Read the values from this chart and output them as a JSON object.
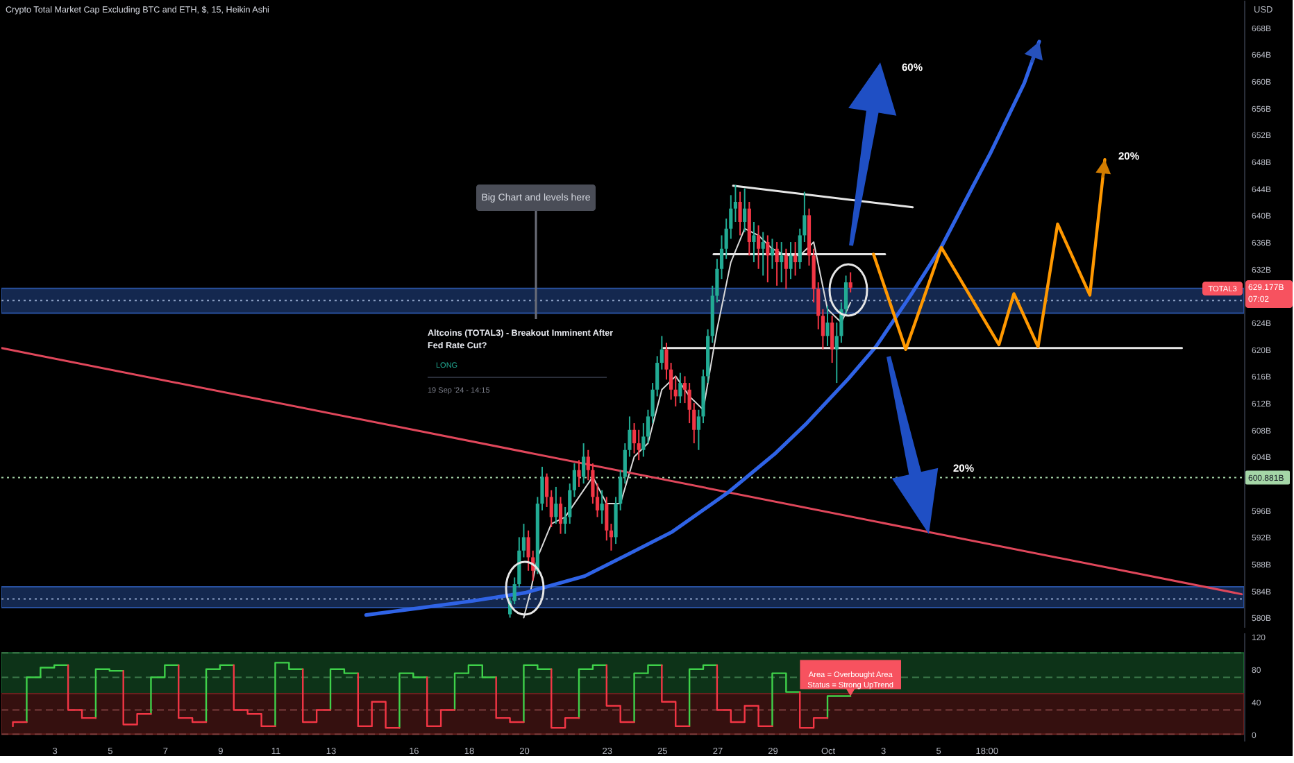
{
  "chart_data": [
    {
      "type": "candlestick",
      "title": "Crypto Total Market Cap Excluding BTC and ETH, $, 15, Heikin Ashi",
      "ylabel": "USD",
      "x": [
        "2024-09-19T12:00",
        "2024-09-19T16:00",
        "2024-09-19T20:00",
        "2024-09-20T00:00",
        "2024-09-20T04:00",
        "2024-09-20T08:00",
        "2024-09-20T12:00",
        "2024-09-20T16:00",
        "2024-09-20T20:00",
        "2024-09-21T00:00",
        "2024-09-21T04:00",
        "2024-09-21T08:00",
        "2024-09-21T12:00",
        "2024-09-21T16:00",
        "2024-09-21T20:00",
        "2024-09-22T00:00",
        "2024-09-22T04:00",
        "2024-09-22T08:00",
        "2024-09-22T12:00",
        "2024-09-22T16:00",
        "2024-09-22T20:00",
        "2024-09-23T00:00",
        "2024-09-23T04:00",
        "2024-09-23T08:00",
        "2024-09-23T12:00",
        "2024-09-23T16:00",
        "2024-09-23T20:00",
        "2024-09-24T00:00",
        "2024-09-24T04:00",
        "2024-09-24T08:00",
        "2024-09-24T12:00",
        "2024-09-24T16:00",
        "2024-09-24T20:00",
        "2024-09-25T00:00",
        "2024-09-25T04:00",
        "2024-09-25T08:00",
        "2024-09-25T12:00",
        "2024-09-25T16:00",
        "2024-09-25T20:00",
        "2024-09-26T00:00",
        "2024-09-26T04:00",
        "2024-09-26T08:00",
        "2024-09-26T12:00",
        "2024-09-26T16:00",
        "2024-09-26T20:00",
        "2024-09-27T00:00",
        "2024-09-27T04:00",
        "2024-09-27T08:00",
        "2024-09-27T12:00",
        "2024-09-27T16:00",
        "2024-09-27T20:00",
        "2024-09-28T00:00",
        "2024-09-28T04:00",
        "2024-09-28T08:00",
        "2024-09-28T12:00",
        "2024-09-28T16:00",
        "2024-09-28T20:00",
        "2024-09-29T00:00",
        "2024-09-29T04:00",
        "2024-09-29T08:00",
        "2024-09-29T12:00",
        "2024-09-29T16:00",
        "2024-09-29T20:00",
        "2024-09-30T00:00",
        "2024-09-30T04:00",
        "2024-09-30T08:00",
        "2024-09-30T12:00",
        "2024-09-30T16:00",
        "2024-09-30T20:00",
        "2024-10-01T00:00",
        "2024-10-01T04:00",
        "2024-10-01T08:00",
        "2024-10-01T12:00",
        "2024-10-01T16:00",
        "2024-10-01T20:00"
      ],
      "ohlc": [
        [
          580.5,
          583,
          580,
          582.5
        ],
        [
          582.5,
          586,
          582,
          585
        ],
        [
          585,
          592,
          584.5,
          590
        ],
        [
          590,
          594,
          589,
          592
        ],
        [
          592,
          593,
          587,
          589
        ],
        [
          589,
          590,
          585.5,
          587
        ],
        [
          587,
          598,
          586.5,
          597
        ],
        [
          597,
          602.5,
          596,
          601
        ],
        [
          601,
          601.5,
          596.5,
          598
        ],
        [
          598,
          599,
          593.5,
          595
        ],
        [
          595,
          599.5,
          594,
          597
        ],
        [
          597,
          598,
          592.5,
          594
        ],
        [
          594,
          596.5,
          592.5,
          595
        ],
        [
          595,
          600,
          594,
          599
        ],
        [
          599,
          603,
          598,
          602
        ],
        [
          602,
          603.5,
          599.5,
          601
        ],
        [
          601,
          606,
          600,
          604
        ],
        [
          604,
          605,
          600.5,
          602
        ],
        [
          602,
          603,
          597,
          598
        ],
        [
          598,
          600,
          595,
          596
        ],
        [
          596,
          599,
          594,
          597
        ],
        [
          597,
          598,
          591.5,
          593
        ],
        [
          593,
          594,
          590,
          592
        ],
        [
          592,
          598,
          591,
          597
        ],
        [
          597,
          602,
          596,
          601
        ],
        [
          601,
          606,
          600,
          605
        ],
        [
          605,
          610,
          604,
          608
        ],
        [
          608,
          609,
          604.5,
          606
        ],
        [
          606,
          608,
          603.5,
          605
        ],
        [
          605,
          609,
          604,
          607
        ],
        [
          607,
          611,
          606,
          610
        ],
        [
          610,
          615,
          609,
          614
        ],
        [
          614,
          619,
          613,
          618
        ],
        [
          618,
          622,
          617,
          620
        ],
        [
          620,
          621,
          615.5,
          617
        ],
        [
          617,
          618,
          612.5,
          614
        ],
        [
          614,
          616,
          611.5,
          613
        ],
        [
          613,
          616.5,
          612,
          615
        ],
        [
          615,
          616,
          612,
          614
        ],
        [
          614,
          615,
          609,
          611
        ],
        [
          611,
          612,
          606,
          608
        ],
        [
          608,
          611,
          605,
          610
        ],
        [
          610,
          617,
          609,
          616
        ],
        [
          616,
          623,
          615,
          622
        ],
        [
          622,
          629.5,
          621,
          628
        ],
        [
          628,
          633.5,
          627,
          632
        ],
        [
          632,
          637,
          630.5,
          635
        ],
        [
          635,
          639.5,
          633.5,
          638
        ],
        [
          638,
          643,
          636.5,
          641
        ],
        [
          641,
          644.5,
          639,
          642
        ],
        [
          642,
          643.5,
          637,
          639
        ],
        [
          639,
          644,
          637.5,
          641
        ],
        [
          641,
          642,
          634,
          636
        ],
        [
          636,
          639,
          633,
          637
        ],
        [
          637,
          638.5,
          632,
          635
        ],
        [
          635,
          637.5,
          631,
          636
        ],
        [
          636,
          637,
          630,
          634
        ],
        [
          634,
          636.5,
          632,
          635
        ],
        [
          635,
          636,
          629.5,
          633
        ],
        [
          633,
          636,
          630,
          634
        ],
        [
          634,
          635,
          629,
          632
        ],
        [
          632,
          636,
          630.5,
          634
        ],
        [
          634,
          636,
          631,
          633
        ],
        [
          633,
          638,
          632,
          637
        ],
        [
          637,
          643.5,
          636,
          640
        ],
        [
          640,
          641,
          632.5,
          634
        ],
        [
          634,
          635,
          627,
          629
        ],
        [
          629,
          630,
          623,
          625
        ],
        [
          625,
          626,
          620,
          622
        ],
        [
          622,
          626.5,
          620.5,
          624
        ],
        [
          624,
          625,
          618,
          620
        ],
        [
          620,
          624,
          615,
          622
        ],
        [
          622,
          627,
          621,
          626
        ],
        [
          626,
          631,
          625,
          630
        ],
        [
          630,
          631.5,
          628.5,
          629.2
        ]
      ],
      "colors": [
        "#22ab94",
        "#22ab94",
        "#22ab94",
        "#22ab94",
        "#f23645",
        "#f23645",
        "#22ab94",
        "#22ab94",
        "#f23645",
        "#f23645",
        "#22ab94",
        "#f23645",
        "#22ab94",
        "#22ab94",
        "#22ab94",
        "#f23645",
        "#22ab94",
        "#f23645",
        "#f23645",
        "#f23645",
        "#22ab94",
        "#f23645",
        "#f23645",
        "#22ab94",
        "#22ab94",
        "#22ab94",
        "#22ab94",
        "#f23645",
        "#f23645",
        "#22ab94",
        "#22ab94",
        "#22ab94",
        "#22ab94",
        "#22ab94",
        "#f23645",
        "#f23645",
        "#f23645",
        "#22ab94",
        "#f23645",
        "#f23645",
        "#f23645",
        "#22ab94",
        "#22ab94",
        "#22ab94",
        "#22ab94",
        "#22ab94",
        "#22ab94",
        "#22ab94",
        "#22ab94",
        "#22ab94",
        "#f23645",
        "#22ab94",
        "#f23645",
        "#22ab94",
        "#f23645",
        "#22ab94",
        "#f23645",
        "#22ab94",
        "#f23645",
        "#22ab94",
        "#f23645",
        "#22ab94",
        "#f23645",
        "#22ab94",
        "#22ab94",
        "#f23645",
        "#f23645",
        "#f23645",
        "#f23645",
        "#22ab94",
        "#f23645",
        "#22ab94",
        "#22ab94",
        "#22ab94",
        "#f23645"
      ],
      "series": [
        {
          "type": "line",
          "color": "#d9d9d9",
          "x": [
            "2024-09-20T00:00",
            "2024-09-20T06:00",
            "2024-09-20T12:00",
            "2024-09-21T00:00",
            "2024-09-21T12:00",
            "2024-09-22T00:00",
            "2024-09-22T12:00",
            "2024-09-23T00:00",
            "2024-09-23T12:00",
            "2024-09-24T00:00",
            "2024-09-24T12:00",
            "2024-09-25T00:00",
            "2024-09-25T12:00",
            "2024-09-26T00:00",
            "2024-09-26T12:00",
            "2024-09-27T00:00",
            "2024-09-27T12:00",
            "2024-09-28T00:00",
            "2024-09-28T12:00",
            "2024-09-29T00:00",
            "2024-09-29T12:00",
            "2024-09-30T00:00",
            "2024-09-30T12:00",
            "2024-10-01T00:00",
            "2024-10-01T12:00",
            "2024-10-01T20:00"
          ],
          "values": [
            580,
            584,
            589,
            594,
            595,
            598,
            601,
            597,
            597,
            604,
            606,
            614,
            616,
            613,
            611,
            623,
            633,
            638,
            637,
            635,
            634,
            634,
            636,
            626,
            624,
            627
          ]
        },
        {
          "type": "line",
          "color": "#e0475b",
          "x": [
            "2024-09-01T02:00",
            "2024-10-16T00:00"
          ],
          "values": [
            620.2,
            583.5
          ]
        },
        {
          "type": "line",
          "color": "#2f63e6",
          "x": [
            "2024-09-14T07:00",
            "2024-09-16T04:00",
            "2024-09-18T04:00",
            "2024-09-20T01:00",
            "2024-09-22T05:00",
            "2024-09-23T17:00",
            "2024-09-25T09:00",
            "2024-09-27T09:00",
            "2024-09-29T02:00",
            "2024-09-30T06:00",
            "2024-10-01T18:00",
            "2024-10-02T18:00",
            "2024-10-04T00:00",
            "2024-10-05T03:00",
            "2024-10-06T06:00",
            "2024-10-06T22:00",
            "2024-10-08T03:00",
            "2024-10-08T16:00"
          ],
          "values": [
            580.4,
            581.4,
            582.5,
            583.7,
            586.2,
            589.3,
            592.8,
            598.6,
            604.4,
            609.0,
            615.6,
            620.4,
            628.0,
            635.3,
            644.2,
            649.4,
            659.7,
            665.9
          ]
        },
        {
          "type": "line",
          "color": "#e6e6e6",
          "x": [
            "2024-09-27T14:00",
            "2024-10-04T02:00"
          ],
          "values": [
            644.4,
            641.2
          ]
        },
        {
          "type": "line",
          "color": "#e6e6e6",
          "x": [
            "2024-09-26T21:00",
            "2024-10-03T02:00"
          ],
          "values": [
            634.2,
            634.2
          ]
        },
        {
          "type": "line",
          "color": "#e6e6e6",
          "x": [
            "2024-09-25T01:30",
            "2024-10-13T20:00"
          ],
          "values": [
            620.2,
            620.2
          ]
        },
        {
          "type": "line",
          "color": "#ff9800",
          "x": [
            "2024-10-02T16:00",
            "2024-10-03T20:00",
            "2024-10-05T03:00",
            "2024-10-07T05:00",
            "2024-10-07T18:00",
            "2024-10-08T15:00",
            "2024-10-09T08:00",
            "2024-10-10T12:00",
            "2024-10-11T01:00"
          ],
          "values": [
            634.2,
            620.0,
            635.2,
            620.7,
            628.3,
            620.4,
            638.7,
            628.1,
            648.3
          ]
        }
      ],
      "xlim": [
        "2024-09-01T02:00",
        "2024-10-16T02:00"
      ],
      "ylim": [
        578.6,
        672.1
      ],
      "yticks": [
        {
          "value": 580,
          "label": "580B"
        },
        {
          "value": 584,
          "label": "584B"
        },
        {
          "value": 588,
          "label": "588B"
        },
        {
          "value": 592,
          "label": "592B"
        },
        {
          "value": 596,
          "label": "596B"
        },
        {
          "value": 604,
          "label": "604B"
        },
        {
          "value": 608,
          "label": "608B"
        },
        {
          "value": 612,
          "label": "612B"
        },
        {
          "value": 616,
          "label": "616B"
        },
        {
          "value": 620,
          "label": "620B"
        },
        {
          "value": 624,
          "label": "624B"
        },
        {
          "value": 632,
          "label": "632B"
        },
        {
          "value": 636,
          "label": "636B"
        },
        {
          "value": 640,
          "label": "640B"
        },
        {
          "value": 644,
          "label": "644B"
        },
        {
          "value": 648,
          "label": "648B"
        },
        {
          "value": 652,
          "label": "652B"
        },
        {
          "value": 656,
          "label": "656B"
        },
        {
          "value": 660,
          "label": "660B"
        },
        {
          "value": 664,
          "label": "664B"
        },
        {
          "value": 668,
          "label": "668B"
        }
      ],
      "tick_labels": "y",
      "bands": [
        {
          "axis": "y",
          "from": 625.4,
          "to": 629.1,
          "color": "#14284f"
        },
        {
          "axis": "y",
          "from": 581.5,
          "to": 584.6,
          "color": "#14284f"
        }
      ],
      "ref_lines": [
        {
          "axis": "y",
          "value": 627.3,
          "color": "#8ea2c8",
          "line_style": "dotted"
        },
        {
          "axis": "y",
          "value": 582.8,
          "color": "#8ea2c8",
          "line_style": "dotted"
        },
        {
          "axis": "y",
          "value": 600.881,
          "label": "600.881B",
          "color": "#a5d6a7",
          "line_style": "dotted"
        }
      ],
      "annotations": [
        "Big Chart and levels here",
        "Altcoins (TOTAL3) - Breakout Imminent After\nFed Rate Cut?",
        "LONG",
        "19 Sep '24 - 14:15",
        "60%",
        "20%",
        "20%",
        "TOTAL3",
        "629.177B\n07:02"
      ]
    },
    {
      "type": "step",
      "x": [
        "2024-09-01T12:00",
        "2024-09-02T00:00",
        "2024-09-02T12:00",
        "2024-09-03T00:00",
        "2024-09-03T12:00",
        "2024-09-04T00:00",
        "2024-09-04T12:00",
        "2024-09-05T00:00",
        "2024-09-05T12:00",
        "2024-09-06T00:00",
        "2024-09-06T12:00",
        "2024-09-07T00:00",
        "2024-09-07T12:00",
        "2024-09-08T00:00",
        "2024-09-08T12:00",
        "2024-09-09T00:00",
        "2024-09-09T12:00",
        "2024-09-10T00:00",
        "2024-09-10T12:00",
        "2024-09-11T00:00",
        "2024-09-11T12:00",
        "2024-09-12T00:00",
        "2024-09-12T12:00",
        "2024-09-13T00:00",
        "2024-09-13T12:00",
        "2024-09-14T00:00",
        "2024-09-14T12:00",
        "2024-09-15T00:00",
        "2024-09-15T12:00",
        "2024-09-16T00:00",
        "2024-09-16T12:00",
        "2024-09-17T00:00",
        "2024-09-17T12:00",
        "2024-09-18T00:00",
        "2024-09-18T12:00",
        "2024-09-19T00:00",
        "2024-09-19T12:00",
        "2024-09-20T00:00",
        "2024-09-20T12:00",
        "2024-09-21T00:00",
        "2024-09-21T12:00",
        "2024-09-22T00:00",
        "2024-09-22T12:00",
        "2024-09-23T00:00",
        "2024-09-23T12:00",
        "2024-09-24T00:00",
        "2024-09-24T12:00",
        "2024-09-25T00:00",
        "2024-09-25T12:00",
        "2024-09-26T00:00",
        "2024-09-26T12:00",
        "2024-09-27T00:00",
        "2024-09-27T12:00",
        "2024-09-28T00:00",
        "2024-09-28T12:00",
        "2024-09-29T00:00",
        "2024-09-29T12:00",
        "2024-09-30T00:00",
        "2024-09-30T12:00",
        "2024-10-01T00:00",
        "2024-10-01T20:00"
      ],
      "series": [
        {
          "color": "#3fd14a",
          "values": [
            null,
            15,
            70,
            82,
            85,
            null,
            20,
            80,
            78,
            null,
            25,
            70,
            85,
            null,
            15,
            80,
            85,
            null,
            null,
            10,
            88,
            80,
            null,
            30,
            80,
            75,
            null,
            null,
            8,
            75,
            70,
            null,
            30,
            75,
            85,
            70,
            null,
            15,
            85,
            80,
            null,
            20,
            80,
            85,
            null,
            15,
            75,
            85,
            null,
            10,
            80,
            85,
            null,
            null,
            null,
            10,
            75,
            52,
            null,
            20,
            47
          ]
        },
        {
          "color": "#f23645",
          "values": [
            10,
            15,
            null,
            null,
            85,
            30,
            20,
            null,
            78,
            12,
            25,
            null,
            85,
            20,
            15,
            null,
            85,
            30,
            25,
            10,
            null,
            80,
            15,
            30,
            null,
            75,
            10,
            40,
            8,
            null,
            70,
            10,
            30,
            null,
            null,
            70,
            20,
            15,
            null,
            80,
            8,
            20,
            null,
            85,
            35,
            15,
            null,
            85,
            40,
            10,
            null,
            85,
            30,
            15,
            35,
            10,
            null,
            52,
            8,
            20,
            null
          ]
        }
      ],
      "xlim": [
        "2024-09-01T02:00",
        "2024-10-16T02:00"
      ],
      "ylim": [
        -8,
        125
      ],
      "xticks": [
        {
          "value": "2024-09-03T00:00",
          "label": "3"
        },
        {
          "value": "2024-09-05T00:00",
          "label": "5"
        },
        {
          "value": "2024-09-07T00:00",
          "label": "7"
        },
        {
          "value": "2024-09-09T00:00",
          "label": "9"
        },
        {
          "value": "2024-09-11T00:00",
          "label": "11"
        },
        {
          "value": "2024-09-13T00:00",
          "label": "13"
        },
        {
          "value": "2024-09-16T00:00",
          "label": "16"
        },
        {
          "value": "2024-09-18T00:00",
          "label": "18"
        },
        {
          "value": "2024-09-20T00:00",
          "label": "20"
        },
        {
          "value": "2024-09-23T00:00",
          "label": "23"
        },
        {
          "value": "2024-09-25T00:00",
          "label": "25"
        },
        {
          "value": "2024-09-27T00:00",
          "label": "27"
        },
        {
          "value": "2024-09-29T00:00",
          "label": "29"
        },
        {
          "value": "2024-10-01T00:00",
          "label": "Oct"
        },
        {
          "value": "2024-10-03T00:00",
          "label": "3"
        },
        {
          "value": "2024-10-05T00:00",
          "label": "5"
        },
        {
          "value": "2024-10-06T18:00",
          "label": "18:00"
        }
      ],
      "yticks": [
        0,
        40,
        80,
        120
      ],
      "bands": [
        {
          "axis": "y",
          "from": 50,
          "to": 100,
          "color": "#0d3318"
        },
        {
          "axis": "y",
          "from": 0,
          "to": 50,
          "color": "#35100f"
        }
      ],
      "ref_lines": [
        {
          "axis": "y",
          "value": 100,
          "color": "#3d7a4a",
          "line_style": "dashed"
        },
        {
          "axis": "y",
          "value": 70,
          "color": "#3d7a4a",
          "line_style": "dashed"
        },
        {
          "axis": "y",
          "value": 30,
          "color": "#7a3d3d",
          "line_style": "dashed"
        },
        {
          "axis": "y",
          "value": 0,
          "color": "#7a3d3d",
          "line_style": "dashed"
        }
      ],
      "annotations": [
        {
          "text": "Area = Overbought Area\nStatus =  Strong UpTrend",
          "x": "2024-10-01T20:00",
          "y": 47
        }
      ]
    }
  ]
}
